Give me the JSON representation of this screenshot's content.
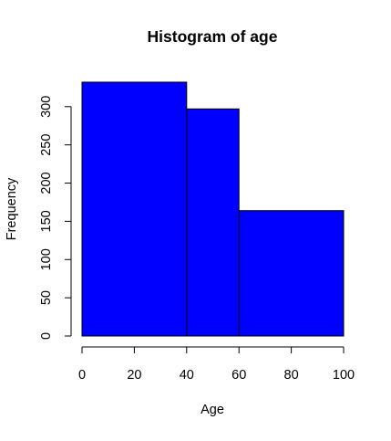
{
  "chart_data": {
    "type": "bar",
    "title": "Histogram of age",
    "xlabel": "Age",
    "ylabel": "Frequency",
    "bins": [
      {
        "x0": 0,
        "x1": 40,
        "count": 332
      },
      {
        "x0": 40,
        "x1": 60,
        "count": 297
      },
      {
        "x0": 60,
        "x1": 100,
        "count": 164
      }
    ],
    "xlim": [
      0,
      100
    ],
    "ylim": [
      0,
      332
    ],
    "x_ticks": [
      0,
      20,
      40,
      60,
      80,
      100
    ],
    "y_ticks": [
      0,
      50,
      100,
      150,
      200,
      250,
      300
    ],
    "bar_color": "#0000FF",
    "grid": false,
    "legend": "none"
  }
}
